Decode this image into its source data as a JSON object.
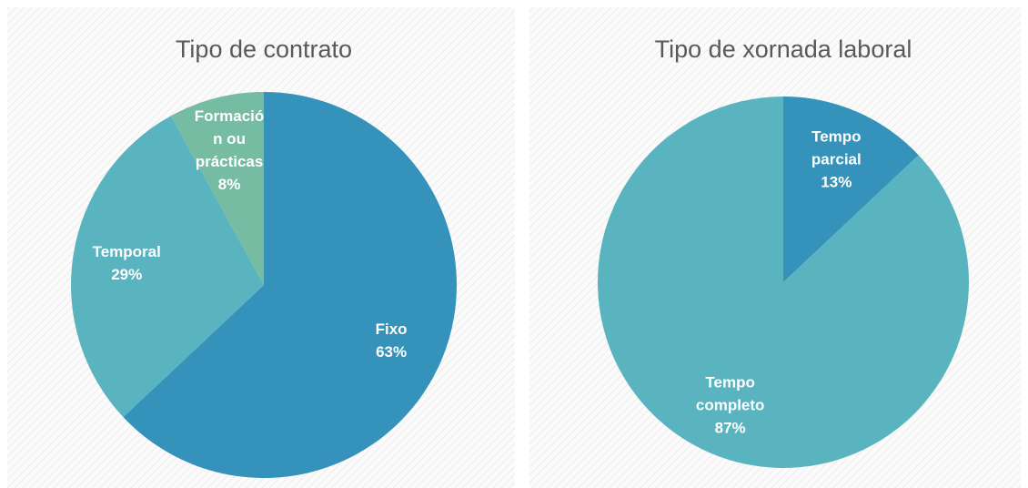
{
  "chart_data": [
    {
      "type": "pie",
      "title": "Tipo de contrato",
      "categories": [
        "Fixo",
        "Temporal",
        "Formación ou prácticas"
      ],
      "values": [
        63,
        29,
        8
      ],
      "value_labels": [
        "63%",
        "29%",
        "8%"
      ],
      "colors": [
        "#3592bb",
        "#59b4c0",
        "#76bca3"
      ]
    },
    {
      "type": "pie",
      "title": "Tipo de xornada laboral",
      "categories": [
        "Tempo parcial",
        "Tempo completo"
      ],
      "values": [
        13,
        87
      ],
      "value_labels": [
        "13%",
        "87%"
      ],
      "colors": [
        "#3592bb",
        "#59b4c0"
      ]
    }
  ]
}
